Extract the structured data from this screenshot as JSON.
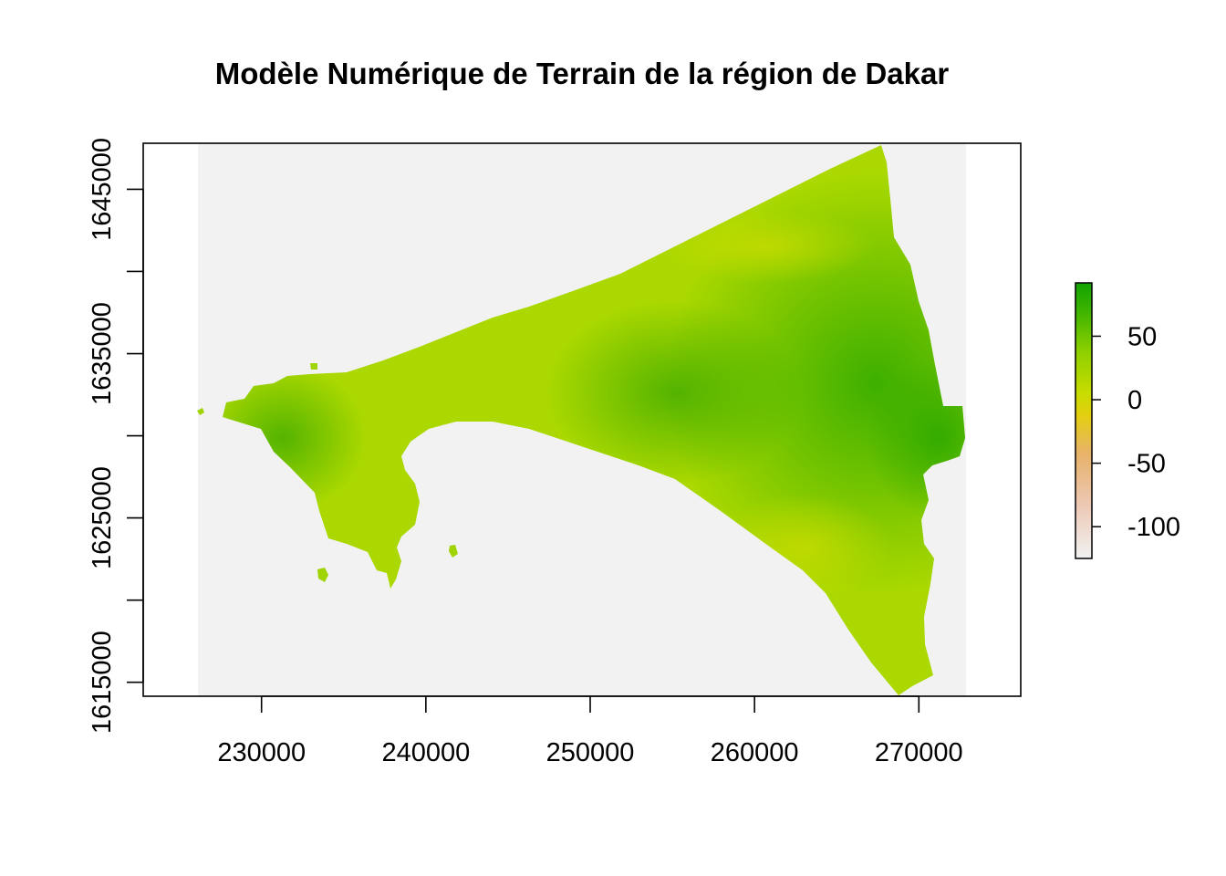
{
  "title": "Modèle Numérique de Terrain de la région de Dakar",
  "chart_data": {
    "type": "heatmap",
    "title": "Modèle Numérique de Terrain de la région de Dakar",
    "xlabel": "",
    "ylabel": "",
    "x_ticks": [
      "230000",
      "240000",
      "250000",
      "260000",
      "270000"
    ],
    "x_tick_values": [
      230000,
      240000,
      250000,
      260000,
      270000
    ],
    "y_ticks": [
      "1615000",
      "1625000",
      "1635000",
      "1645000"
    ],
    "y_tick_values": [
      1615000,
      1625000,
      1635000,
      1645000
    ],
    "y_minor_tick_values": [
      1620000,
      1630000,
      1640000
    ],
    "xlim": [
      222800,
      276200
    ],
    "ylim": [
      1614150,
      1647800
    ],
    "raster_extent": {
      "xmin": 226300,
      "xmax": 272900,
      "ymin": 1614150,
      "ymax": 1647800
    },
    "na_background_color": "#f2f2f2",
    "grid": false,
    "legend": {
      "type": "colorbar",
      "placement": "right",
      "min": -125,
      "max": 92,
      "tick_values": [
        50,
        0,
        -50,
        -100
      ],
      "tick_labels": [
        "50",
        "0",
        "-50",
        "-100"
      ],
      "colors": [
        "#f2f2f2",
        "#eab38e",
        "#e6b63a",
        "#e6d300",
        "#b8dc00",
        "#76c800",
        "#22a800",
        "#00a600"
      ]
    },
    "colors": {
      "land_mid": "#aad800",
      "land_high": "#3db500",
      "land_low": "#c4dc00"
    }
  }
}
